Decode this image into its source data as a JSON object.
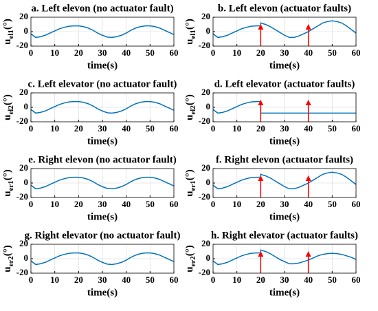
{
  "chart_data": [
    {
      "type": "line",
      "title": "a. Left elevon (no actuator fault)",
      "ylabel": "u",
      "ylabel_sub": "el1",
      "ylabel_unit": "(°)",
      "xlabel": "time(s)",
      "x": [
        0,
        2,
        4,
        6,
        8,
        10,
        12,
        14,
        16,
        18,
        20,
        22,
        24,
        26,
        28,
        30,
        32,
        34,
        36,
        38,
        40,
        42,
        44,
        46,
        48,
        50,
        52,
        54,
        56,
        58,
        60
      ],
      "values": [
        -3,
        -8,
        -7,
        -5,
        -2,
        1,
        4,
        6,
        7.5,
        8,
        8,
        7,
        5,
        2,
        -2,
        -5,
        -7.5,
        -8,
        -7,
        -5,
        -2,
        2,
        5,
        7,
        8,
        8,
        7,
        5,
        2,
        -1,
        -4
      ],
      "color": "#0072bd",
      "xlim": [
        0,
        60
      ],
      "xticks": [
        0,
        10,
        20,
        30,
        40,
        50,
        60
      ],
      "ylim": [
        -20,
        20
      ],
      "yticks": [
        -20,
        0,
        20
      ],
      "grid": true
    },
    {
      "type": "line",
      "title": "b. Left elevon (actuator faults)",
      "ylabel": "u",
      "ylabel_sub": "el1",
      "ylabel_unit": "(°)",
      "xlabel": "time(s)",
      "x": [
        0,
        2,
        4,
        6,
        8,
        10,
        12,
        14,
        16,
        18,
        20,
        20,
        22,
        24,
        26,
        28,
        30,
        32,
        34,
        36,
        38,
        40,
        42,
        44,
        46,
        48,
        50,
        52,
        54,
        56,
        58,
        60
      ],
      "values": [
        -3,
        -8,
        -7,
        -5,
        -2,
        1,
        4,
        6,
        7.5,
        8,
        8,
        12,
        10,
        7,
        3,
        -1,
        -5,
        -8,
        -8,
        -6,
        -3,
        0,
        4,
        8,
        12,
        14,
        15,
        14,
        12,
        8,
        3,
        -2
      ],
      "color": "#0072bd",
      "arrows": [
        20,
        40
      ],
      "arrow_color": "#ff0000",
      "xlim": [
        0,
        60
      ],
      "xticks": [
        0,
        10,
        20,
        30,
        40,
        50,
        60
      ],
      "ylim": [
        -20,
        20
      ],
      "yticks": [
        -20,
        0,
        20
      ],
      "grid": true
    },
    {
      "type": "line",
      "title": "c. Left elevator (no actuator fault)",
      "ylabel": "u",
      "ylabel_sub": "el2",
      "ylabel_unit": "(°)",
      "xlabel": "time(s)",
      "x": [
        0,
        2,
        4,
        6,
        8,
        10,
        12,
        14,
        16,
        18,
        20,
        22,
        24,
        26,
        28,
        30,
        32,
        34,
        36,
        38,
        40,
        42,
        44,
        46,
        48,
        50,
        52,
        54,
        56,
        58,
        60
      ],
      "values": [
        -3,
        -8,
        -7,
        -5,
        -2,
        1,
        4,
        6,
        7.5,
        8,
        8,
        7,
        5,
        2,
        -2,
        -5,
        -7.5,
        -8,
        -7,
        -5,
        -2,
        2,
        5,
        7,
        8,
        8,
        7,
        5,
        2,
        -1,
        -4
      ],
      "color": "#0072bd",
      "xlim": [
        0,
        60
      ],
      "xticks": [
        0,
        10,
        20,
        30,
        40,
        50,
        60
      ],
      "ylim": [
        -20,
        20
      ],
      "yticks": [
        -20,
        0,
        20
      ],
      "grid": true
    },
    {
      "type": "line",
      "title": "d. Left elevator (actuator faults)",
      "ylabel": "u",
      "ylabel_sub": "el2",
      "ylabel_unit": "(°)",
      "xlabel": "time(s)",
      "x": [
        0,
        2,
        4,
        6,
        8,
        10,
        12,
        14,
        16,
        18,
        20,
        20,
        60
      ],
      "values": [
        -3,
        -8,
        -7,
        -5,
        -2,
        1,
        4,
        6,
        7.5,
        8,
        8,
        -8,
        -8
      ],
      "color": "#0072bd",
      "arrows": [
        20,
        40
      ],
      "arrow_color": "#ff0000",
      "xlim": [
        0,
        60
      ],
      "xticks": [
        0,
        10,
        20,
        30,
        40,
        50,
        60
      ],
      "ylim": [
        -20,
        20
      ],
      "yticks": [
        -20,
        0,
        20
      ],
      "grid": true
    },
    {
      "type": "line",
      "title": "e. Right elevon (no actuator fault)",
      "ylabel": "u",
      "ylabel_sub": "er1",
      "ylabel_unit": "(°)",
      "xlabel": "time(s)",
      "x": [
        0,
        2,
        4,
        6,
        8,
        10,
        12,
        14,
        16,
        18,
        20,
        22,
        24,
        26,
        28,
        30,
        32,
        34,
        36,
        38,
        40,
        42,
        44,
        46,
        48,
        50,
        52,
        54,
        56,
        58,
        60
      ],
      "values": [
        -3,
        -8,
        -7,
        -5,
        -2,
        1,
        4,
        6,
        7.5,
        8,
        8,
        7,
        5,
        2,
        -2,
        -5,
        -7.5,
        -8,
        -7,
        -5,
        -2,
        2,
        5,
        7,
        8,
        8,
        7,
        5,
        2,
        -1,
        -4
      ],
      "color": "#0072bd",
      "xlim": [
        0,
        60
      ],
      "xticks": [
        0,
        10,
        20,
        30,
        40,
        50,
        60
      ],
      "ylim": [
        -20,
        20
      ],
      "yticks": [
        -20,
        0,
        20
      ],
      "grid": true
    },
    {
      "type": "line",
      "title": "f. Right elevon (actuator faults)",
      "ylabel": "u",
      "ylabel_sub": "er1",
      "ylabel_unit": "(°)",
      "xlabel": "time(s)",
      "x": [
        0,
        2,
        4,
        6,
        8,
        10,
        12,
        14,
        16,
        18,
        20,
        20,
        22,
        24,
        26,
        28,
        30,
        32,
        34,
        36,
        38,
        40,
        42,
        44,
        46,
        48,
        50,
        52,
        54,
        56,
        58,
        60
      ],
      "values": [
        -3,
        -8,
        -7,
        -5,
        -2,
        1,
        4,
        6,
        7.5,
        8,
        8,
        12,
        10,
        7,
        3,
        -1,
        -5,
        -8,
        -8,
        -6,
        -3,
        0,
        4,
        8,
        12,
        14,
        15,
        14,
        12,
        8,
        3,
        -2
      ],
      "color": "#0072bd",
      "arrows": [
        20,
        40
      ],
      "arrow_color": "#ff0000",
      "xlim": [
        0,
        60
      ],
      "xticks": [
        0,
        10,
        20,
        30,
        40,
        50,
        60
      ],
      "ylim": [
        -20,
        20
      ],
      "yticks": [
        -20,
        0,
        20
      ],
      "grid": true
    },
    {
      "type": "line",
      "title": "g. Right elevator (no actuator fault)",
      "ylabel": "u",
      "ylabel_sub": "er2",
      "ylabel_unit": "(°)",
      "xlabel": "time(s)",
      "x": [
        0,
        2,
        4,
        6,
        8,
        10,
        12,
        14,
        16,
        18,
        20,
        22,
        24,
        26,
        28,
        30,
        32,
        34,
        36,
        38,
        40,
        42,
        44,
        46,
        48,
        50,
        52,
        54,
        56,
        58,
        60
      ],
      "values": [
        -3,
        -8,
        -7,
        -5,
        -2,
        1,
        4,
        6,
        7.5,
        8,
        8,
        7,
        5,
        2,
        -2,
        -5,
        -7.5,
        -8,
        -7,
        -5,
        -2,
        2,
        5,
        7,
        8,
        8,
        7,
        5,
        2,
        -1,
        -4
      ],
      "color": "#0072bd",
      "xlim": [
        0,
        60
      ],
      "xticks": [
        0,
        10,
        20,
        30,
        40,
        50,
        60
      ],
      "ylim": [
        -20,
        20
      ],
      "yticks": [
        -20,
        0,
        20
      ],
      "grid": true
    },
    {
      "type": "line",
      "title": "h. Right elevator (actuator faults)",
      "ylabel": "u",
      "ylabel_sub": "er2",
      "ylabel_unit": "(°)",
      "xlabel": "time(s)",
      "x": [
        0,
        2,
        4,
        6,
        8,
        10,
        12,
        14,
        16,
        18,
        20,
        20,
        22,
        24,
        26,
        28,
        30,
        32,
        34,
        36,
        38,
        40,
        42,
        44,
        46,
        48,
        50,
        52,
        54,
        56,
        58,
        60
      ],
      "values": [
        -3,
        -8,
        -7,
        -5,
        -2,
        1,
        4,
        6,
        7.5,
        8,
        8,
        12,
        10,
        7,
        3,
        -1,
        -4,
        -7,
        -7,
        -6,
        -4,
        -2,
        1,
        4,
        6,
        7,
        7.5,
        7,
        6,
        4,
        2,
        -1
      ],
      "color": "#0072bd",
      "arrows": [
        20,
        40
      ],
      "arrow_color": "#ff0000",
      "xlim": [
        0,
        60
      ],
      "xticks": [
        0,
        10,
        20,
        30,
        40,
        50,
        60
      ],
      "ylim": [
        -20,
        20
      ],
      "yticks": [
        -20,
        0,
        20
      ],
      "grid": true
    }
  ]
}
